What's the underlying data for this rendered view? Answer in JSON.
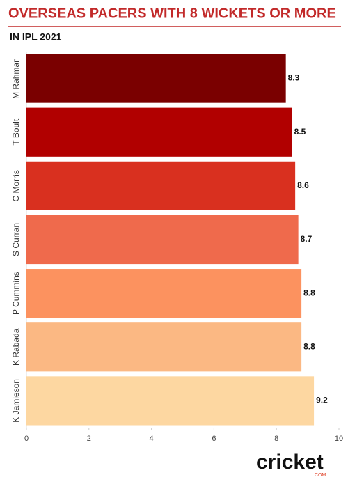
{
  "chart_data": {
    "type": "hbar",
    "title": "OVERSEAS PACERS WITH 8 WICKETS OR MORE",
    "subtitle": "IN IPL 2021",
    "categories": [
      "M Rahman",
      "T Boult",
      "C Morris",
      "S Curran",
      "P Cummins",
      "K Rabada",
      "K Jamieson"
    ],
    "values": [
      8.3,
      8.5,
      8.6,
      8.7,
      8.8,
      8.8,
      9.2
    ],
    "colors": [
      "#7a0000",
      "#b10000",
      "#d9301f",
      "#ef6a4c",
      "#fc925f",
      "#fbb883",
      "#fdd7a1"
    ],
    "xlim": [
      0,
      10
    ],
    "xticks": [
      0,
      2,
      4,
      6,
      8,
      10
    ]
  },
  "logo": {
    "text": "cricket",
    "sub": "COM"
  }
}
